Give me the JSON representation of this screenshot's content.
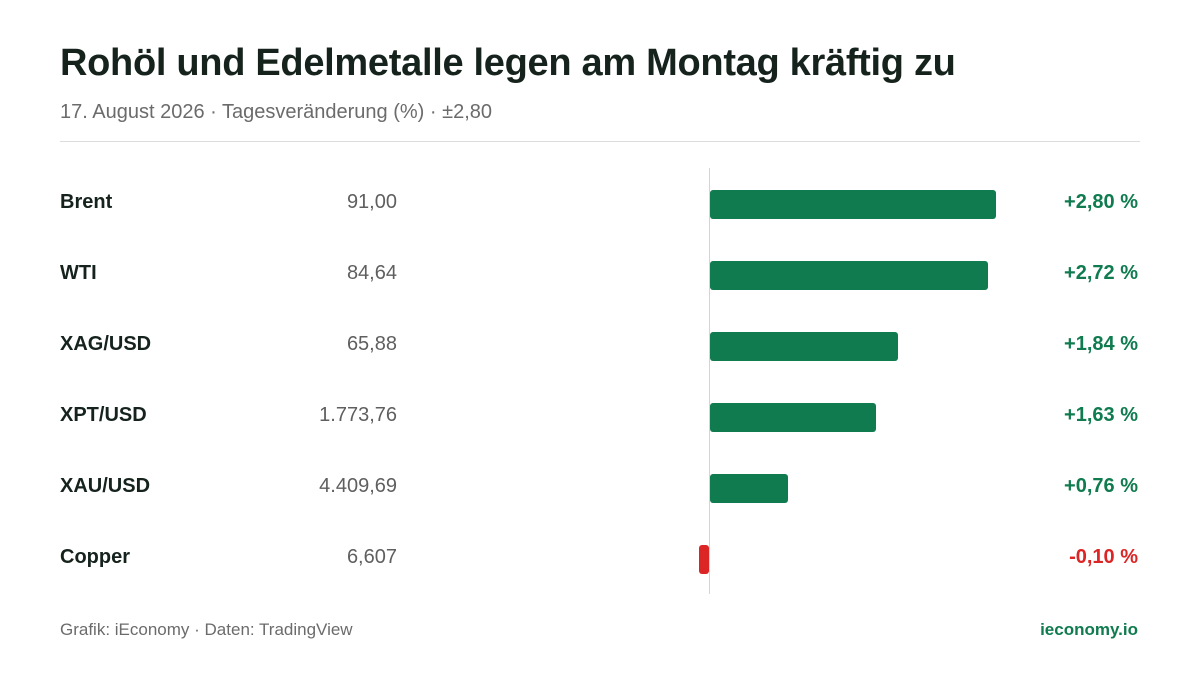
{
  "header": {
    "title": "Rohöl und Edelmetalle legen am Montag kräftig zu",
    "subtitle": "17. August 2026 · Tagesveränderung (%) · ±2,80"
  },
  "footer": {
    "source": "Grafik: iEconomy · Daten: TradingView",
    "brand": "ieconomy.io"
  },
  "colors": {
    "positive": "#0f7b4f",
    "negative": "#dc2626"
  },
  "chart_data": {
    "type": "bar",
    "orientation": "horizontal",
    "scale_max": 2.8,
    "categories": [
      "Brent",
      "WTI",
      "XAG/USD",
      "XPT/USD",
      "XAU/USD",
      "Copper"
    ],
    "prices": [
      "91,00",
      "84,64",
      "65,88",
      "1.773,76",
      "4.409,69",
      "6,607"
    ],
    "values": [
      2.8,
      2.72,
      1.84,
      1.63,
      0.76,
      -0.1
    ],
    "value_labels": [
      "+2,80 %",
      "+2,72 %",
      "+1,84 %",
      "+1,63 %",
      "+0,76 %",
      "-0,10 %"
    ]
  }
}
